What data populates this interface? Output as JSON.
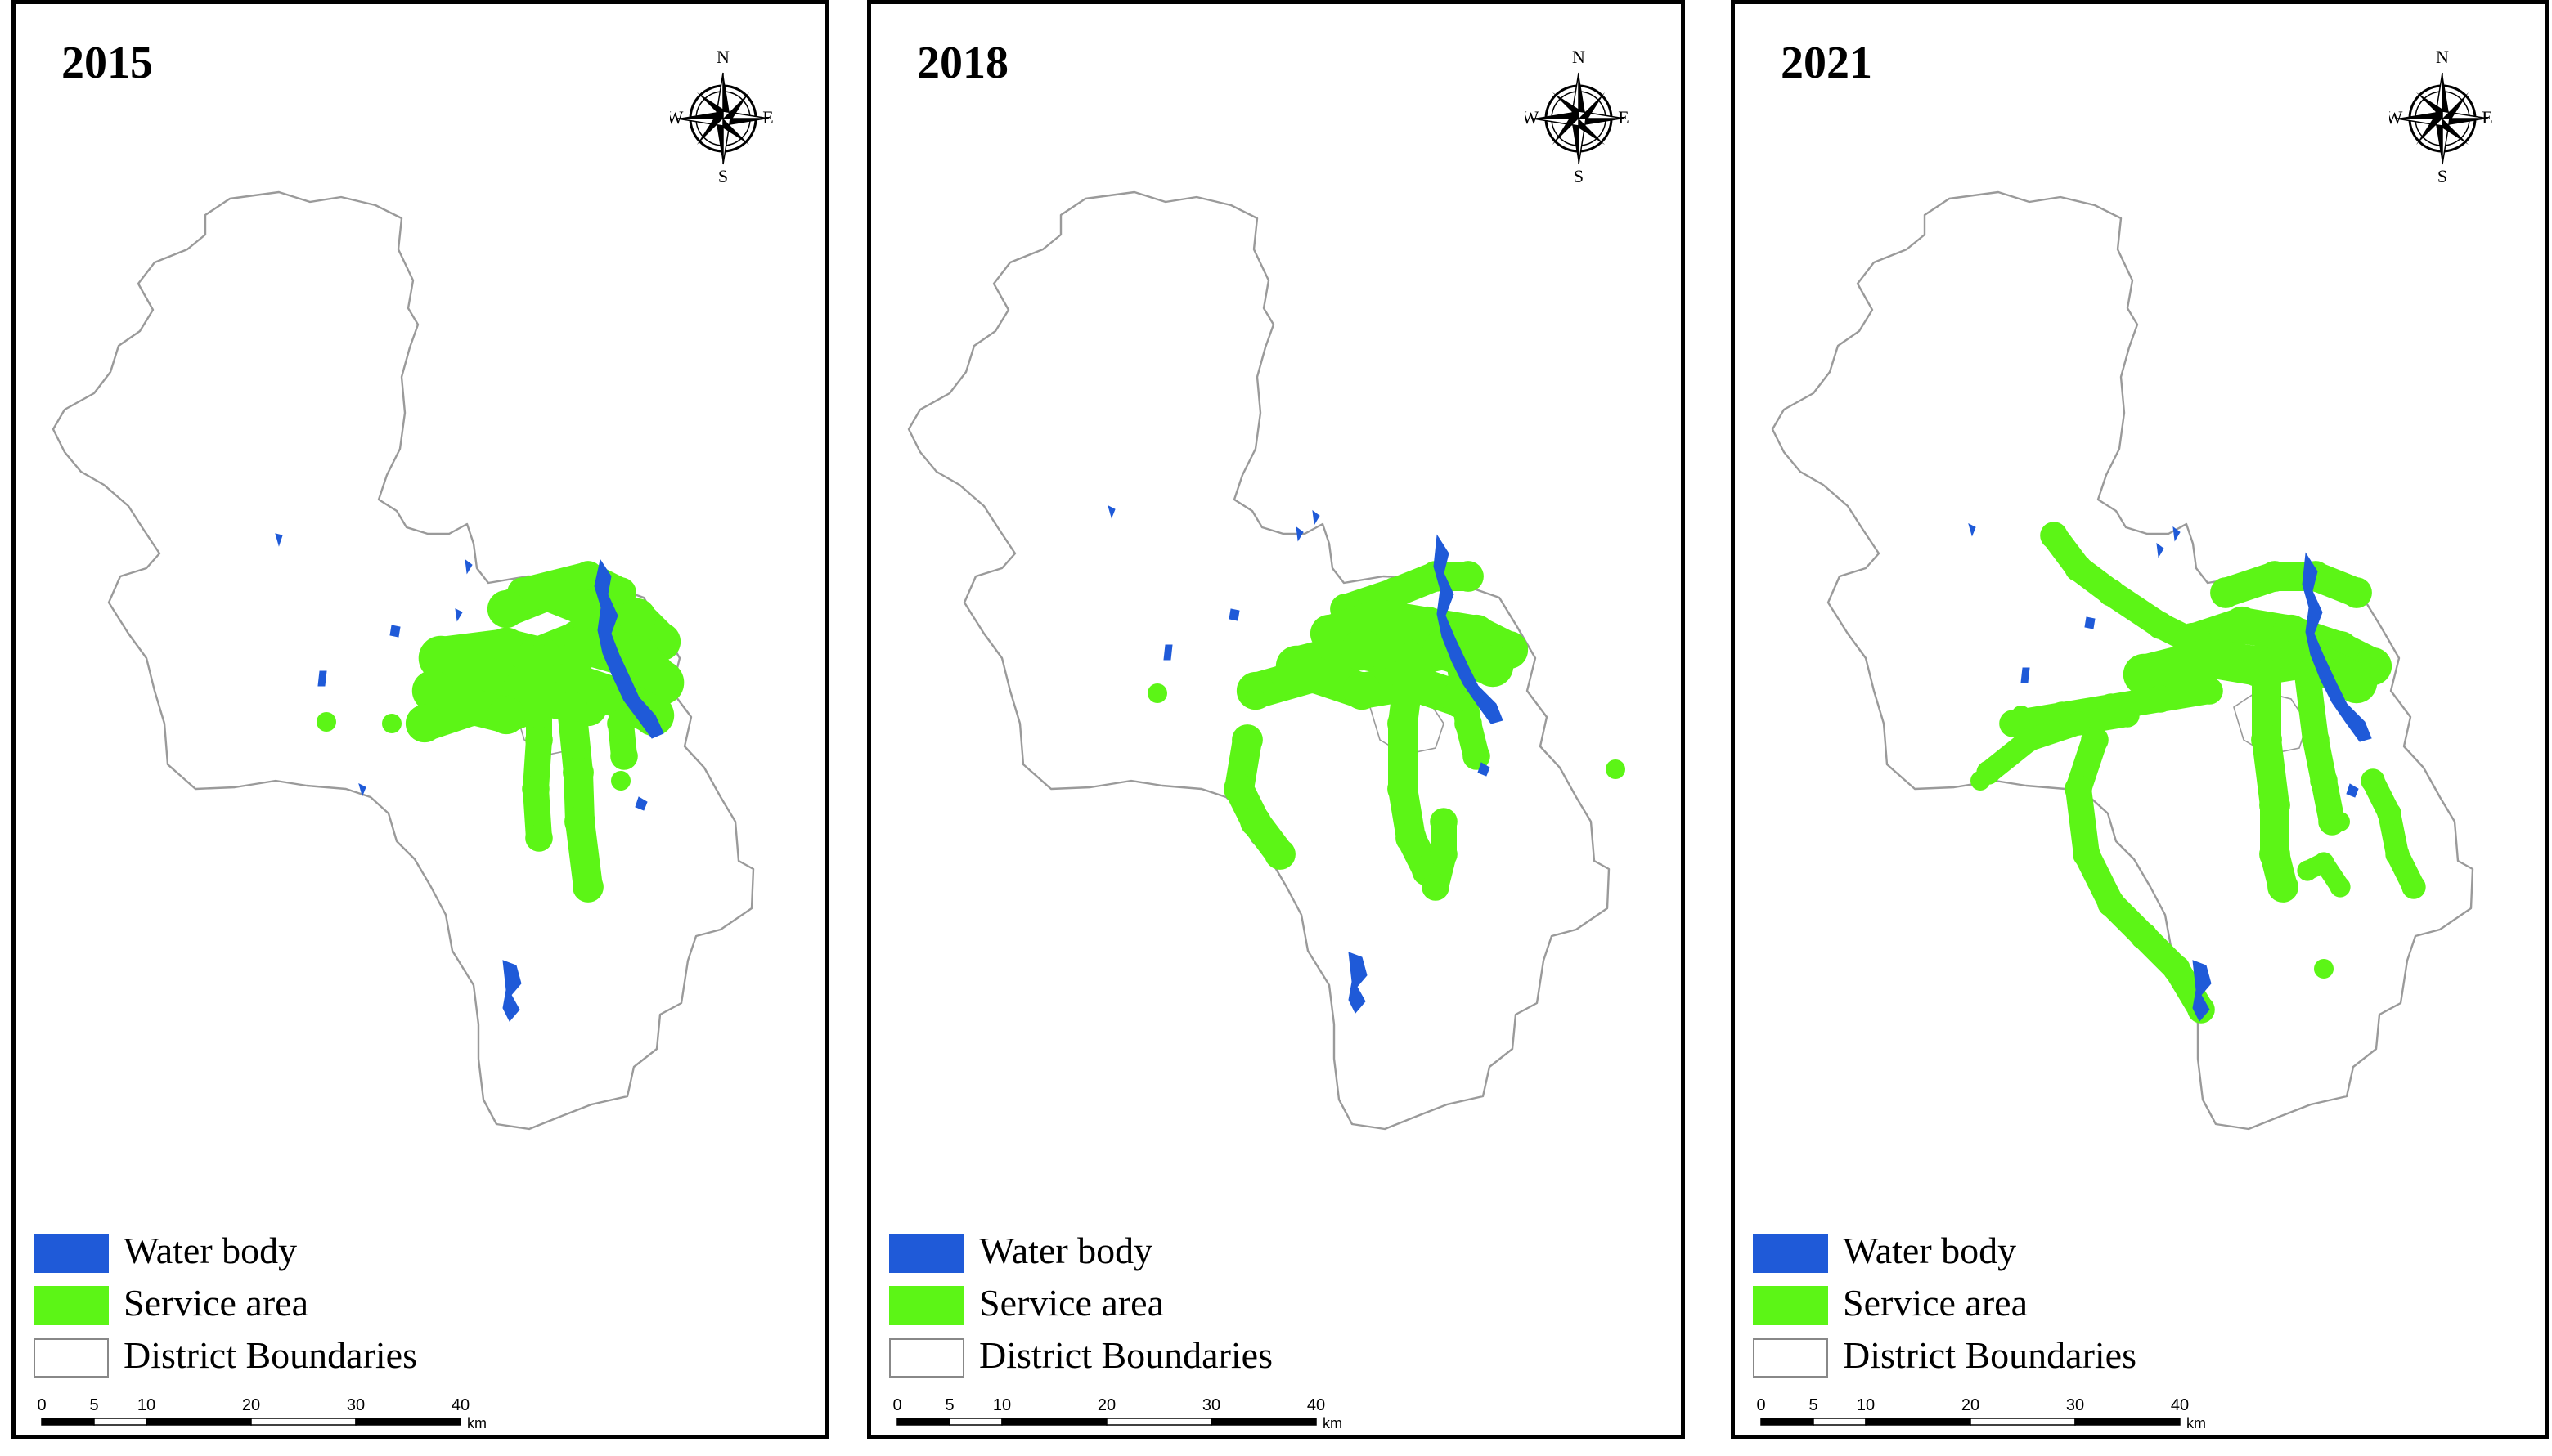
{
  "colors": {
    "water_body": "#1f5ad8",
    "service_area": "#5cf516",
    "district_boundary": "#9a9a9a",
    "background": "#ffffff"
  },
  "compass": {
    "north": "N",
    "south": "S",
    "east": "E",
    "west": "W"
  },
  "legend": {
    "water_body": "Water body",
    "service_area": "Service area",
    "district_boundaries": "District Boundaries"
  },
  "scale_bar": {
    "ticks": [
      "0",
      "5",
      "10",
      "20",
      "30",
      "40"
    ],
    "unit": "km"
  },
  "panels": [
    {
      "year": "2015"
    },
    {
      "year": "2018"
    },
    {
      "year": "2021"
    }
  ]
}
